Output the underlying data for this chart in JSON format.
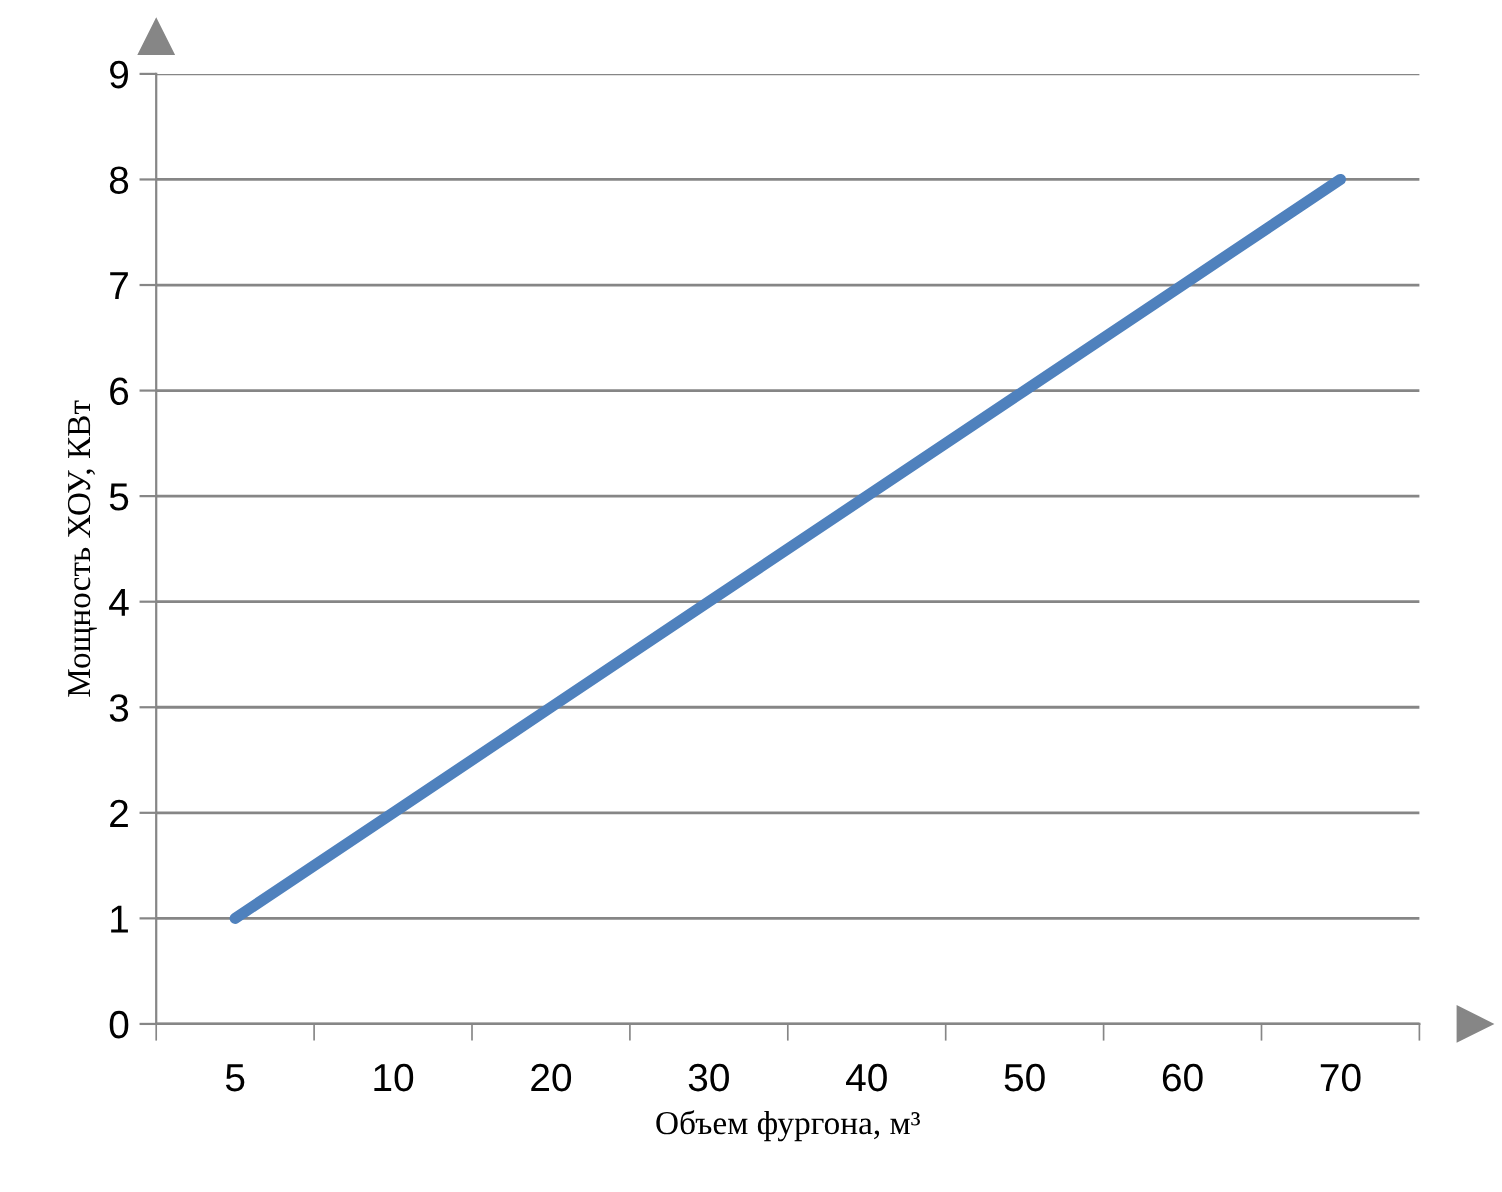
{
  "chart_data": {
    "type": "line",
    "xlabel": "Объем фургона, м³",
    "ylabel": "Мощность ХОУ, КВт",
    "categories": [
      "5",
      "10",
      "20",
      "30",
      "40",
      "50",
      "60",
      "70"
    ],
    "series": [
      {
        "color": "#4f81bd",
        "values": [
          1,
          2,
          3,
          4,
          5,
          6,
          7,
          8
        ]
      }
    ],
    "ylim": [
      0,
      9
    ],
    "yticks": [
      0,
      1,
      2,
      3,
      4,
      5,
      6,
      7,
      8,
      9
    ],
    "grid": "y",
    "legend": false,
    "marker": "none",
    "line_style": "solid"
  }
}
